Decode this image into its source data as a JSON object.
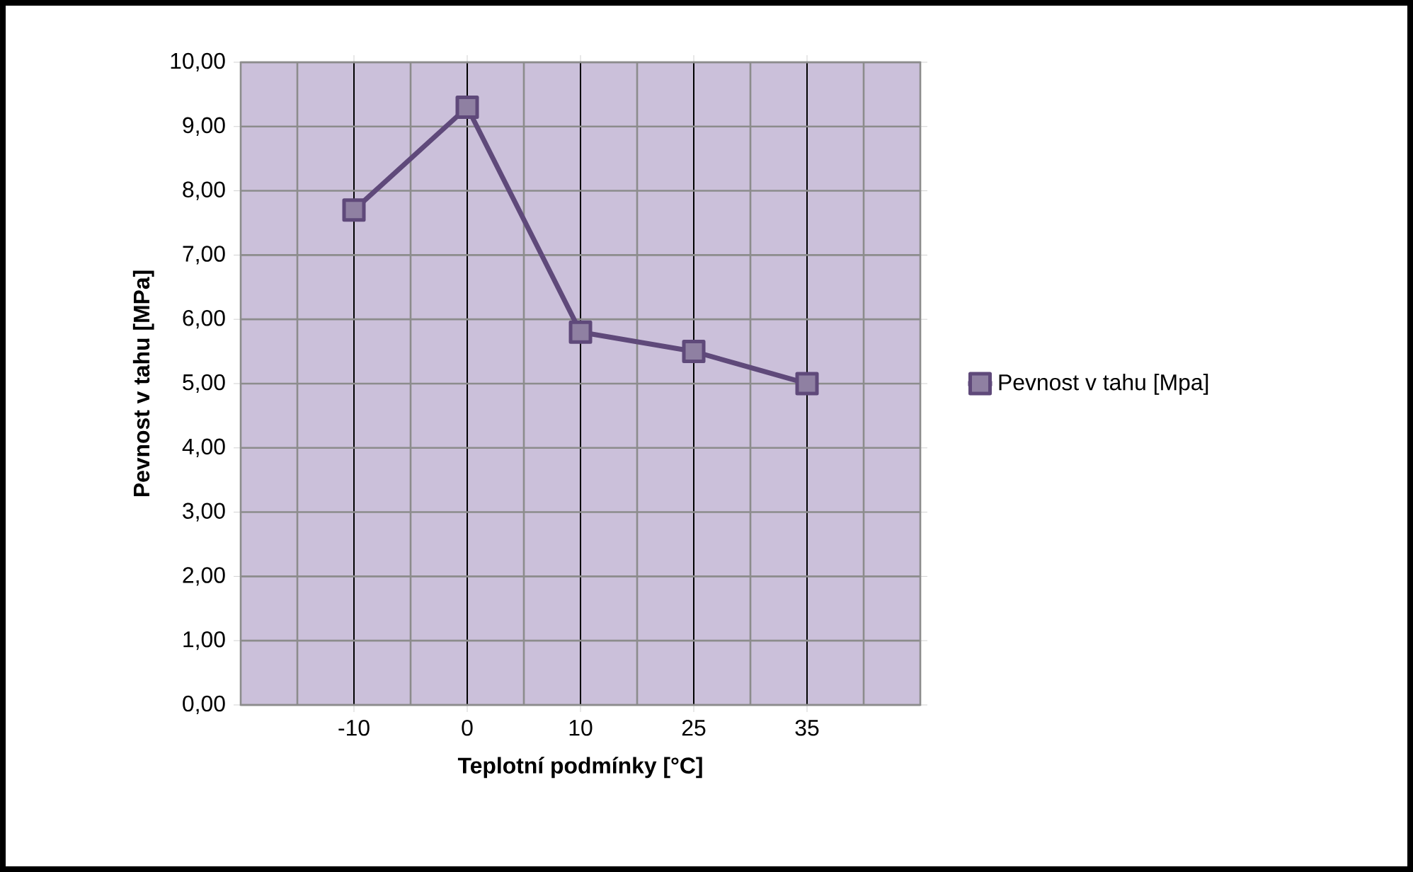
{
  "chart_data": {
    "type": "line",
    "xlabel": "Teplotní podmínky [°C]",
    "ylabel": "Pevnost v tahu [MPa]",
    "categories": [
      "-10",
      "0",
      "10",
      "25",
      "35"
    ],
    "series": [
      {
        "name": "Pevnost v tahu [Mpa]",
        "color": "#5f497a",
        "values": [
          7.7,
          9.3,
          5.8,
          5.5,
          5.0
        ]
      }
    ],
    "ylim": [
      0,
      10
    ],
    "yticks": [
      {
        "value": 0,
        "label": "0,00"
      },
      {
        "value": 1,
        "label": "1,00"
      },
      {
        "value": 2,
        "label": "2,00"
      },
      {
        "value": 3,
        "label": "3,00"
      },
      {
        "value": 4,
        "label": "4,00"
      },
      {
        "value": 5,
        "label": "5,00"
      },
      {
        "value": 6,
        "label": "6,00"
      },
      {
        "value": 7,
        "label": "7,00"
      },
      {
        "value": 8,
        "label": "8,00"
      },
      {
        "value": 9,
        "label": "9,00"
      },
      {
        "value": 10,
        "label": "10,00"
      }
    ],
    "grid": true,
    "legend": "right",
    "marker": "square",
    "line_style": "solid"
  }
}
